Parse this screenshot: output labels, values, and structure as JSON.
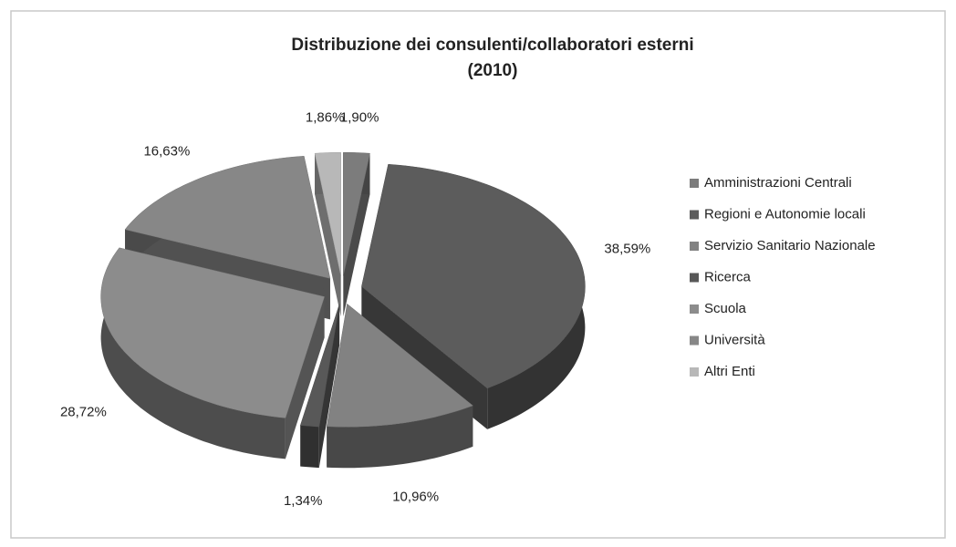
{
  "chart_data": {
    "type": "pie3d",
    "title": "Distribuzione dei consulenti/collaboratori esterni",
    "subtitle": "(2010)",
    "categories": [
      "Amministrazioni Centrali",
      "Regioni e Autonomie locali",
      "Servizio Sanitario Nazionale",
      "Ricerca",
      "Scuola",
      "Università",
      "Altri Enti"
    ],
    "values": [
      1.9,
      38.59,
      10.96,
      1.34,
      28.72,
      16.63,
      1.86
    ],
    "value_labels": [
      "1,90%",
      "38,59%",
      "10,96%",
      "1,34%",
      "28,72%",
      "16,63%",
      "1,86%"
    ],
    "colors": [
      "#7c7c7c",
      "#5c5c5c",
      "#828282",
      "#585858",
      "#8c8c8c",
      "#878787",
      "#b8b8b8"
    ],
    "legend": "right"
  }
}
